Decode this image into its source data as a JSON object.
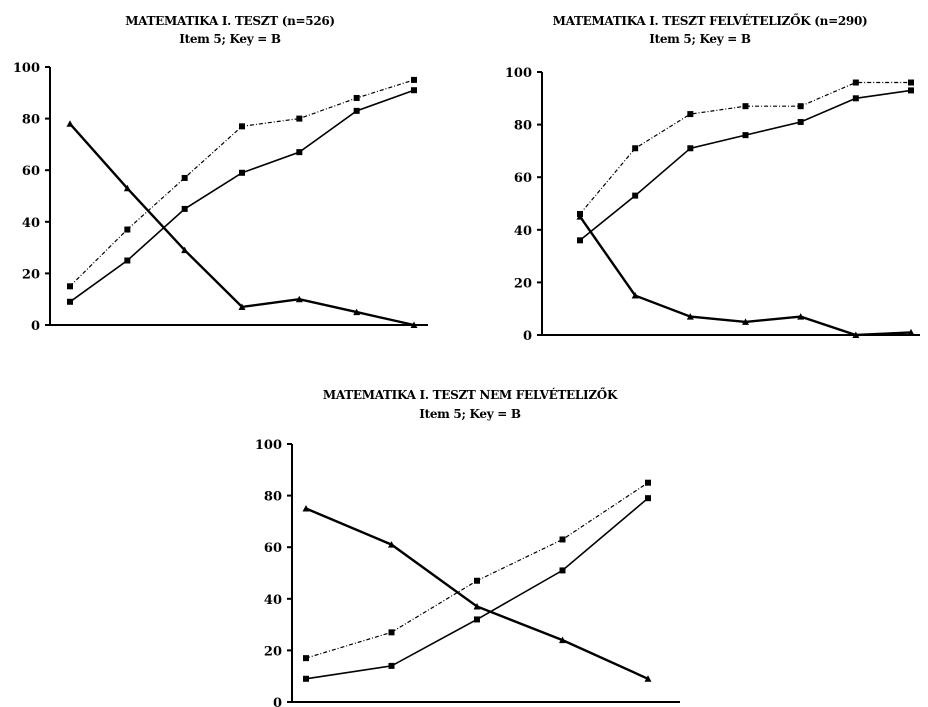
{
  "chart_data": [
    {
      "type": "line",
      "title": "MATEMATIKA I. TESZT (n=526)",
      "subtitle": "Item 5; Key = B",
      "ylim": [
        0,
        100
      ],
      "yticks": [
        0,
        20,
        40,
        60,
        80,
        100
      ],
      "x": [
        1,
        2,
        3,
        4,
        5,
        6,
        7
      ],
      "grid": false,
      "series": [
        {
          "style": "solid-thick",
          "values": [
            78,
            53,
            29,
            7,
            10,
            5,
            0
          ]
        },
        {
          "style": "solid",
          "values": [
            9,
            25,
            45,
            59,
            67,
            83,
            91
          ]
        },
        {
          "style": "dashed",
          "values": [
            15,
            37,
            57,
            77,
            80,
            88,
            95
          ]
        }
      ]
    },
    {
      "type": "line",
      "title": "MATEMATIKA I. TESZT FELVÉTELIZŐK (n=290)",
      "subtitle": "Item 5; Key = B",
      "ylim": [
        0,
        100
      ],
      "yticks": [
        0,
        20,
        40,
        60,
        80,
        100
      ],
      "x": [
        1,
        2,
        3,
        4,
        5,
        6,
        7
      ],
      "grid": false,
      "series": [
        {
          "style": "solid-thick",
          "values": [
            45,
            15,
            7,
            5,
            7,
            0,
            1
          ]
        },
        {
          "style": "solid",
          "values": [
            36,
            53,
            71,
            76,
            81,
            90,
            93
          ]
        },
        {
          "style": "dashed",
          "values": [
            46,
            71,
            84,
            87,
            87,
            96,
            96
          ]
        }
      ]
    },
    {
      "type": "line",
      "title": "MATEMATIKA I. TESZT NEM FELVÉTELIZŐK",
      "subtitle": "Item 5; Key = B",
      "ylim": [
        0,
        100
      ],
      "yticks": [
        0,
        20,
        40,
        60,
        80,
        100
      ],
      "x": [
        1,
        2,
        3,
        4,
        5
      ],
      "grid": false,
      "series": [
        {
          "style": "solid-thick",
          "values": [
            75,
            61,
            37,
            24,
            9
          ]
        },
        {
          "style": "solid",
          "values": [
            9,
            14,
            32,
            51,
            79
          ]
        },
        {
          "style": "dashed",
          "values": [
            17,
            27,
            47,
            63,
            85
          ]
        }
      ]
    }
  ],
  "colors": {
    "line": "#000000",
    "background": "#ffffff"
  }
}
